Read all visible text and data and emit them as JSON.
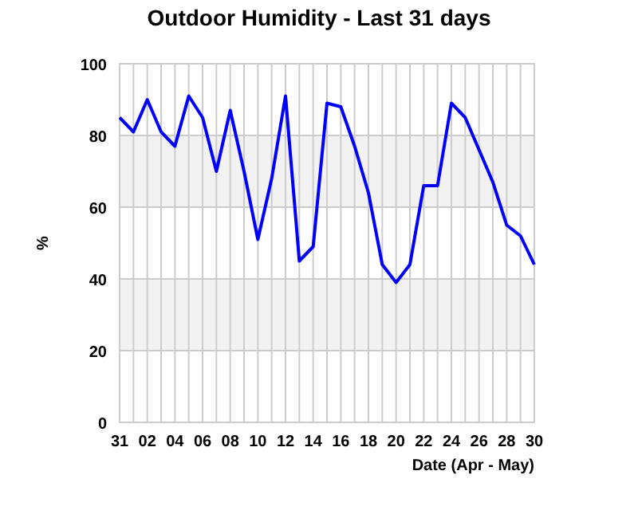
{
  "chart_data": {
    "type": "line",
    "title": "Outdoor Humidity - Last 31 days",
    "xlabel": "Date (Apr - May)",
    "ylabel": "%",
    "categories": [
      "31",
      null,
      "02",
      null,
      "04",
      null,
      "06",
      null,
      "08",
      null,
      "10",
      null,
      "12",
      null,
      "14",
      null,
      "16",
      null,
      "18",
      null,
      "20",
      null,
      "22",
      null,
      "24",
      null,
      "26",
      null,
      "28",
      null,
      "30"
    ],
    "series": [
      {
        "color": "#0000ff",
        "values": [
          85,
          81,
          90,
          81,
          77,
          91,
          85,
          70,
          87,
          70,
          51,
          68,
          91,
          45,
          49,
          89,
          88,
          77,
          64,
          44,
          39,
          44,
          66,
          66,
          89,
          85,
          76,
          67,
          55,
          52,
          44
        ]
      }
    ],
    "ylim": [
      0,
      100
    ],
    "yticks": [
      0,
      20,
      40,
      60,
      80,
      100
    ],
    "grid": true,
    "marker": "none",
    "line_style": "solid",
    "bands": [
      {
        "axis": "y",
        "from": 20,
        "to": 40,
        "color": "#f2f2f2"
      },
      {
        "axis": "y",
        "from": 60,
        "to": 80,
        "color": "#f2f2f2"
      }
    ]
  }
}
